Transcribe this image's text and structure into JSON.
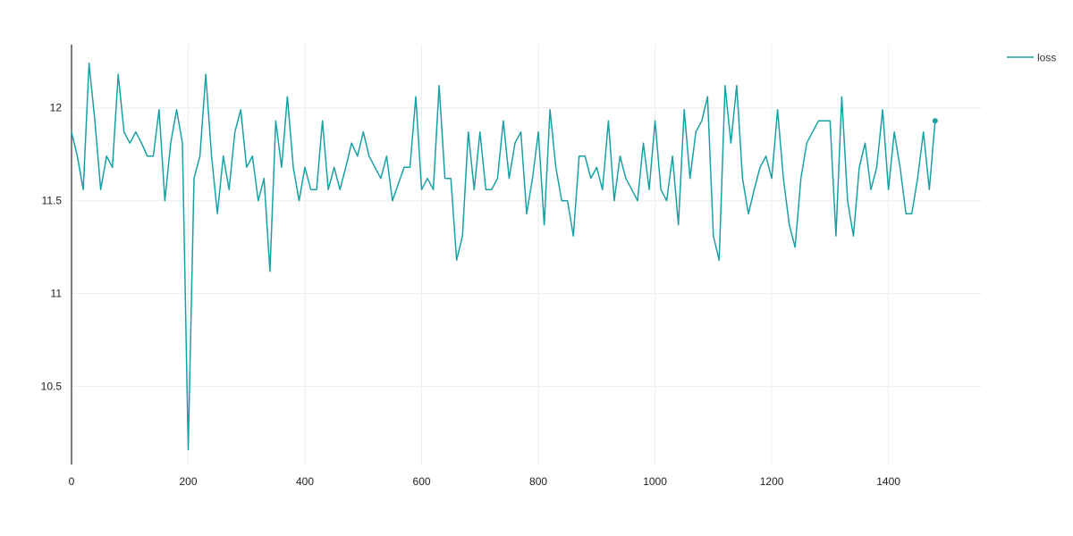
{
  "chart_data": {
    "type": "line",
    "title": "",
    "xlabel": "",
    "ylabel": "",
    "xlim": [
      0,
      1560
    ],
    "ylim": [
      10.08,
      12.34
    ],
    "xticks": [
      0,
      200,
      400,
      600,
      800,
      1000,
      1200,
      1400
    ],
    "yticks": [
      10.5,
      11,
      11.5,
      12
    ],
    "ytick_labels": [
      "10.5",
      "11",
      "11.5",
      "12"
    ],
    "grid": true,
    "legend_position": "top-right",
    "colors": {
      "series": "#17a1a5",
      "grid": "#eeeeee",
      "axis": "#555555"
    },
    "series": [
      {
        "name": "loss",
        "x": [
          0,
          10,
          20,
          30,
          40,
          50,
          60,
          70,
          80,
          90,
          100,
          110,
          120,
          130,
          140,
          150,
          160,
          170,
          180,
          190,
          200,
          210,
          220,
          230,
          240,
          250,
          260,
          270,
          280,
          290,
          300,
          310,
          320,
          330,
          340,
          350,
          360,
          370,
          380,
          390,
          400,
          410,
          420,
          430,
          440,
          450,
          460,
          470,
          480,
          490,
          500,
          510,
          520,
          530,
          540,
          550,
          560,
          570,
          580,
          590,
          600,
          610,
          620,
          630,
          640,
          650,
          660,
          670,
          680,
          690,
          700,
          710,
          720,
          730,
          740,
          750,
          760,
          770,
          780,
          790,
          800,
          810,
          820,
          830,
          840,
          850,
          860,
          870,
          880,
          890,
          900,
          910,
          920,
          930,
          940,
          950,
          960,
          970,
          980,
          990,
          1000,
          1010,
          1020,
          1030,
          1040,
          1050,
          1060,
          1070,
          1080,
          1090,
          1100,
          1110,
          1120,
          1130,
          1140,
          1150,
          1160,
          1170,
          1180,
          1190,
          1200,
          1210,
          1220,
          1230,
          1240,
          1250,
          1260,
          1270,
          1280,
          1290,
          1300,
          1310,
          1320,
          1330,
          1340,
          1350,
          1360,
          1370,
          1380,
          1390,
          1400,
          1410,
          1420,
          1430,
          1440,
          1450,
          1460,
          1470,
          1480
        ],
        "values": [
          11.87,
          11.74,
          11.56,
          12.24,
          11.93,
          11.56,
          11.74,
          11.68,
          12.18,
          11.87,
          11.81,
          11.87,
          11.81,
          11.74,
          11.74,
          11.99,
          11.5,
          11.81,
          11.99,
          11.81,
          10.16,
          11.62,
          11.74,
          12.18,
          11.74,
          11.43,
          11.74,
          11.56,
          11.87,
          11.99,
          11.68,
          11.74,
          11.5,
          11.62,
          11.12,
          11.93,
          11.68,
          12.06,
          11.68,
          11.5,
          11.68,
          11.56,
          11.56,
          11.93,
          11.56,
          11.68,
          11.56,
          11.68,
          11.81,
          11.74,
          11.87,
          11.74,
          11.68,
          11.62,
          11.74,
          11.5,
          11.59,
          11.68,
          11.68,
          12.06,
          11.56,
          11.62,
          11.56,
          12.12,
          11.62,
          11.62,
          11.18,
          11.31,
          11.87,
          11.56,
          11.87,
          11.56,
          11.56,
          11.62,
          11.93,
          11.62,
          11.81,
          11.87,
          11.43,
          11.62,
          11.87,
          11.37,
          11.99,
          11.68,
          11.5,
          11.5,
          11.31,
          11.74,
          11.74,
          11.62,
          11.68,
          11.56,
          11.93,
          11.5,
          11.74,
          11.62,
          11.56,
          11.5,
          11.81,
          11.56,
          11.93,
          11.56,
          11.5,
          11.74,
          11.37,
          11.99,
          11.62,
          11.87,
          11.93,
          12.06,
          11.31,
          11.18,
          12.12,
          11.81,
          12.12,
          11.62,
          11.43,
          11.56,
          11.68,
          11.74,
          11.62,
          11.99,
          11.62,
          11.37,
          11.25,
          11.62,
          11.81,
          11.87,
          11.93,
          11.93,
          11.93,
          11.31,
          12.06,
          11.5,
          11.31,
          11.68,
          11.81,
          11.56,
          11.68,
          11.99,
          11.56,
          11.87,
          11.68,
          11.43,
          11.43,
          11.62,
          11.87,
          11.56,
          11.93
        ]
      }
    ]
  }
}
